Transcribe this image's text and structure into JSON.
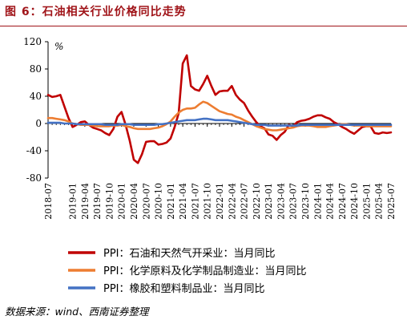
{
  "figure": {
    "title": "图 6：石油相关行业价格同比走势",
    "source": "数据来源：wind、西南证券整理"
  },
  "chart_data": {
    "type": "line",
    "ylabel": "%",
    "ylim": [
      -80,
      120
    ],
    "yticks": [
      -80,
      -40,
      0,
      40,
      80,
      120
    ],
    "grid": false,
    "legend_position": "bottom",
    "x": [
      "2018-07",
      "2018-08",
      "2018-09",
      "2018-10",
      "2018-11",
      "2018-12",
      "2019-01",
      "2019-02",
      "2019-03",
      "2019-04",
      "2019-05",
      "2019-06",
      "2019-07",
      "2019-08",
      "2019-09",
      "2019-10",
      "2019-11",
      "2019-12",
      "2020-01",
      "2020-02",
      "2020-03",
      "2020-04",
      "2020-05",
      "2020-06",
      "2020-07",
      "2020-08",
      "2020-09",
      "2020-10",
      "2020-11",
      "2020-12",
      "2021-01",
      "2021-02",
      "2021-03",
      "2021-04",
      "2021-05",
      "2021-06",
      "2021-07",
      "2021-08",
      "2021-09",
      "2021-10",
      "2021-11",
      "2021-12",
      "2022-01",
      "2022-02",
      "2022-03",
      "2022-04",
      "2022-05",
      "2022-06",
      "2022-07",
      "2022-08",
      "2022-09",
      "2022-10",
      "2022-11",
      "2022-12",
      "2023-01",
      "2023-02",
      "2023-03",
      "2023-04",
      "2023-05",
      "2023-06",
      "2023-07",
      "2023-08",
      "2023-09",
      "2023-10",
      "2023-11",
      "2023-12",
      "2024-01",
      "2024-02",
      "2024-03",
      "2024-04",
      "2024-05",
      "2024-06",
      "2024-07",
      "2024-08",
      "2024-09",
      "2024-10",
      "2024-11",
      "2024-12",
      "2025-01",
      "2025-02",
      "2025-03",
      "2025-04",
      "2025-05",
      "2025-06",
      "2025-07"
    ],
    "xtick_labels": [
      "2018-07",
      "2019-01",
      "2019-04",
      "2019-07",
      "2019-10",
      "2020-01",
      "2020-04",
      "2020-07",
      "2020-10",
      "2021-01",
      "2021-04",
      "2021-07",
      "2021-10",
      "2022-01",
      "2022-04",
      "2022-07",
      "2022-10",
      "2023-01",
      "2023-04",
      "2023-07",
      "2023-10",
      "2024-01",
      "2024-04",
      "2024-07",
      "2024-10",
      "2025-01",
      "2025-04",
      "2025-07"
    ],
    "series": [
      {
        "name": "PPI：石油和天然气开采业：当月同比",
        "color": "#c00000",
        "values": [
          42,
          39,
          40,
          42,
          25,
          8,
          -5,
          -2,
          2,
          3,
          -2,
          -6,
          -8,
          -10,
          -14,
          -17,
          -8,
          10,
          17,
          -2,
          -25,
          -53,
          -58,
          -45,
          -27,
          -26,
          -26,
          -31,
          -30,
          -28,
          -22,
          -5,
          15,
          88,
          100,
          55,
          50,
          48,
          58,
          70,
          55,
          42,
          47,
          48,
          48,
          55,
          42,
          35,
          30,
          19,
          10,
          2,
          -4,
          -7,
          -16,
          -18,
          -24,
          -17,
          -12,
          -2,
          -4,
          2,
          4,
          5,
          7,
          10,
          12,
          12,
          9,
          7,
          2,
          -1,
          -5,
          -8,
          -12,
          -15,
          -10,
          -5,
          -4,
          -4,
          -14,
          -15,
          -13,
          -14,
          -13
        ]
      },
      {
        "name": "PPI：化学原料及化学制品制造业：当月同比",
        "color": "#ed7d31",
        "values": [
          8,
          8,
          7,
          6,
          5,
          3,
          0,
          -1,
          -2,
          -2,
          -2,
          -3,
          -4,
          -4,
          -4,
          -4,
          -3,
          -3,
          -2,
          -4,
          -5,
          -7,
          -8,
          -8,
          -8,
          -8,
          -7,
          -6,
          -4,
          -1,
          3,
          10,
          16,
          20,
          22,
          22,
          23,
          28,
          32,
          30,
          26,
          22,
          18,
          16,
          14,
          13,
          10,
          8,
          5,
          2,
          -1,
          -4,
          -6,
          -8,
          -9,
          -10,
          -10,
          -9,
          -8,
          -7,
          -6,
          -4,
          -3,
          -3,
          -3,
          -4,
          -5,
          -5,
          -5,
          -4,
          -3,
          -2,
          -1,
          -1,
          -2,
          -3,
          -3,
          -3,
          -4,
          -4,
          -4,
          -4,
          -4,
          -4,
          -4
        ]
      },
      {
        "name": "PPI：橡胶和塑料制品业：当月同比",
        "color": "#4472c4",
        "values": [
          1,
          1,
          1,
          1,
          0,
          0,
          0,
          -1,
          -1,
          -1,
          -1,
          -1,
          -1,
          -1,
          -2,
          -2,
          -2,
          -2,
          -1,
          -1,
          -1,
          -2,
          -2,
          -2,
          -2,
          -2,
          -2,
          -1,
          -1,
          0,
          1,
          2,
          3,
          4,
          5,
          5,
          5,
          6,
          7,
          7,
          6,
          5,
          5,
          5,
          5,
          4,
          3,
          2,
          1,
          0,
          -1,
          -2,
          -2,
          -2,
          -3,
          -3,
          -3,
          -3,
          -3,
          -3,
          -3,
          -3,
          -2,
          -2,
          -2,
          -2,
          -2,
          -2,
          -2,
          -2,
          -2,
          -2,
          -2,
          -2,
          -2,
          -2,
          -2,
          -2,
          -2,
          -2,
          -2,
          -2,
          -2,
          -2,
          -2
        ]
      }
    ]
  }
}
